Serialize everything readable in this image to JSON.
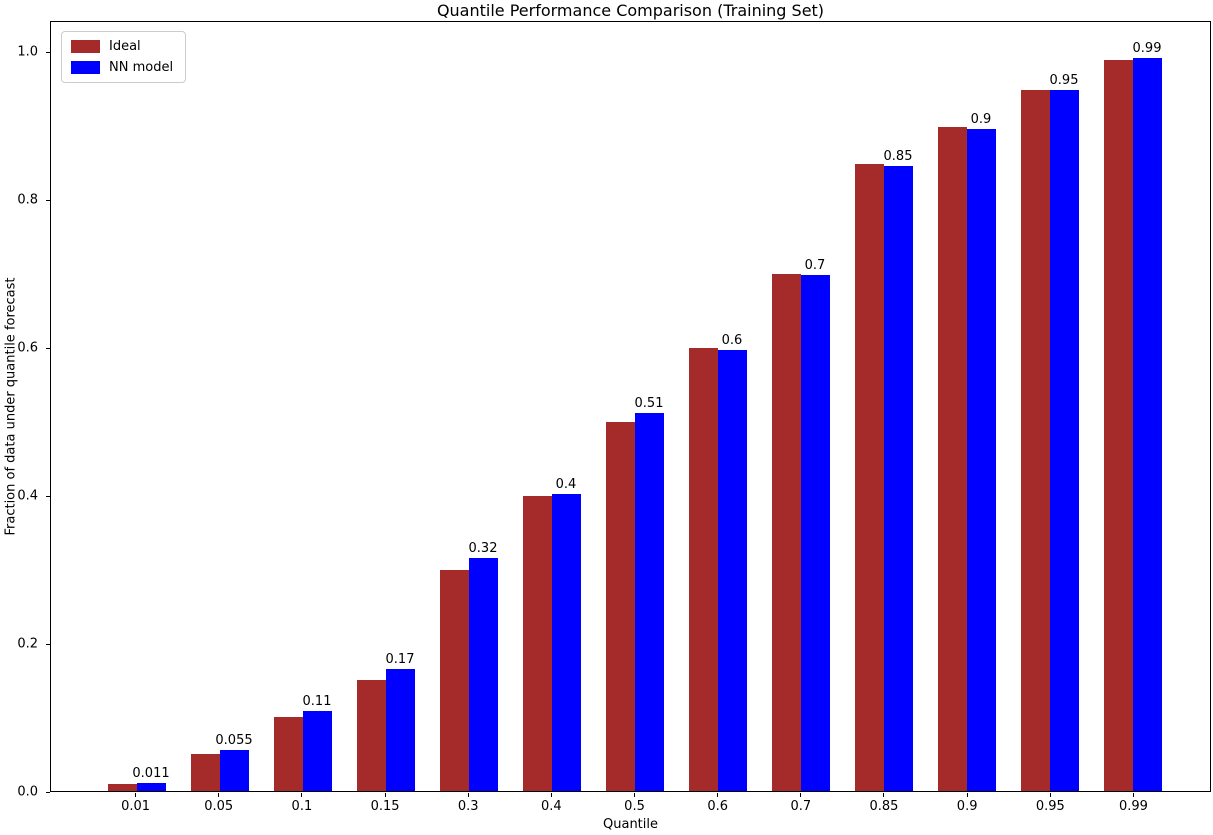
{
  "chart_data": {
    "type": "bar",
    "title": "Quantile Performance Comparison (Training Set)",
    "xlabel": "Quantile",
    "ylabel": "Fraction of data under quantile forecast",
    "categories": [
      "0.01",
      "0.05",
      "0.1",
      "0.15",
      "0.3",
      "0.4",
      "0.5",
      "0.6",
      "0.7",
      "0.85",
      "0.9",
      "0.95",
      "0.99"
    ],
    "series": [
      {
        "name": "Ideal",
        "color": "#A52A2A",
        "values": [
          0.01,
          0.05,
          0.1,
          0.15,
          0.3,
          0.4,
          0.5,
          0.6,
          0.7,
          0.85,
          0.9,
          0.95,
          0.99
        ]
      },
      {
        "name": "NN model",
        "color": "#0000FF",
        "values": [
          0.011,
          0.055,
          0.109,
          0.166,
          0.316,
          0.403,
          0.512,
          0.597,
          0.699,
          0.847,
          0.897,
          0.95,
          0.993
        ]
      }
    ],
    "bar_labels": [
      "0.011",
      "0.055",
      "0.11",
      "0.17",
      "0.32",
      "0.4",
      "0.51",
      "0.6",
      "0.7",
      "0.85",
      "0.9",
      "0.95",
      "0.99"
    ],
    "ylim": [
      0,
      1.042
    ],
    "yticks": [
      "0.0",
      "0.2",
      "0.4",
      "0.6",
      "0.8",
      "1.0"
    ],
    "legend_position": "upper-left",
    "grid": false,
    "background": "#ffffff"
  }
}
